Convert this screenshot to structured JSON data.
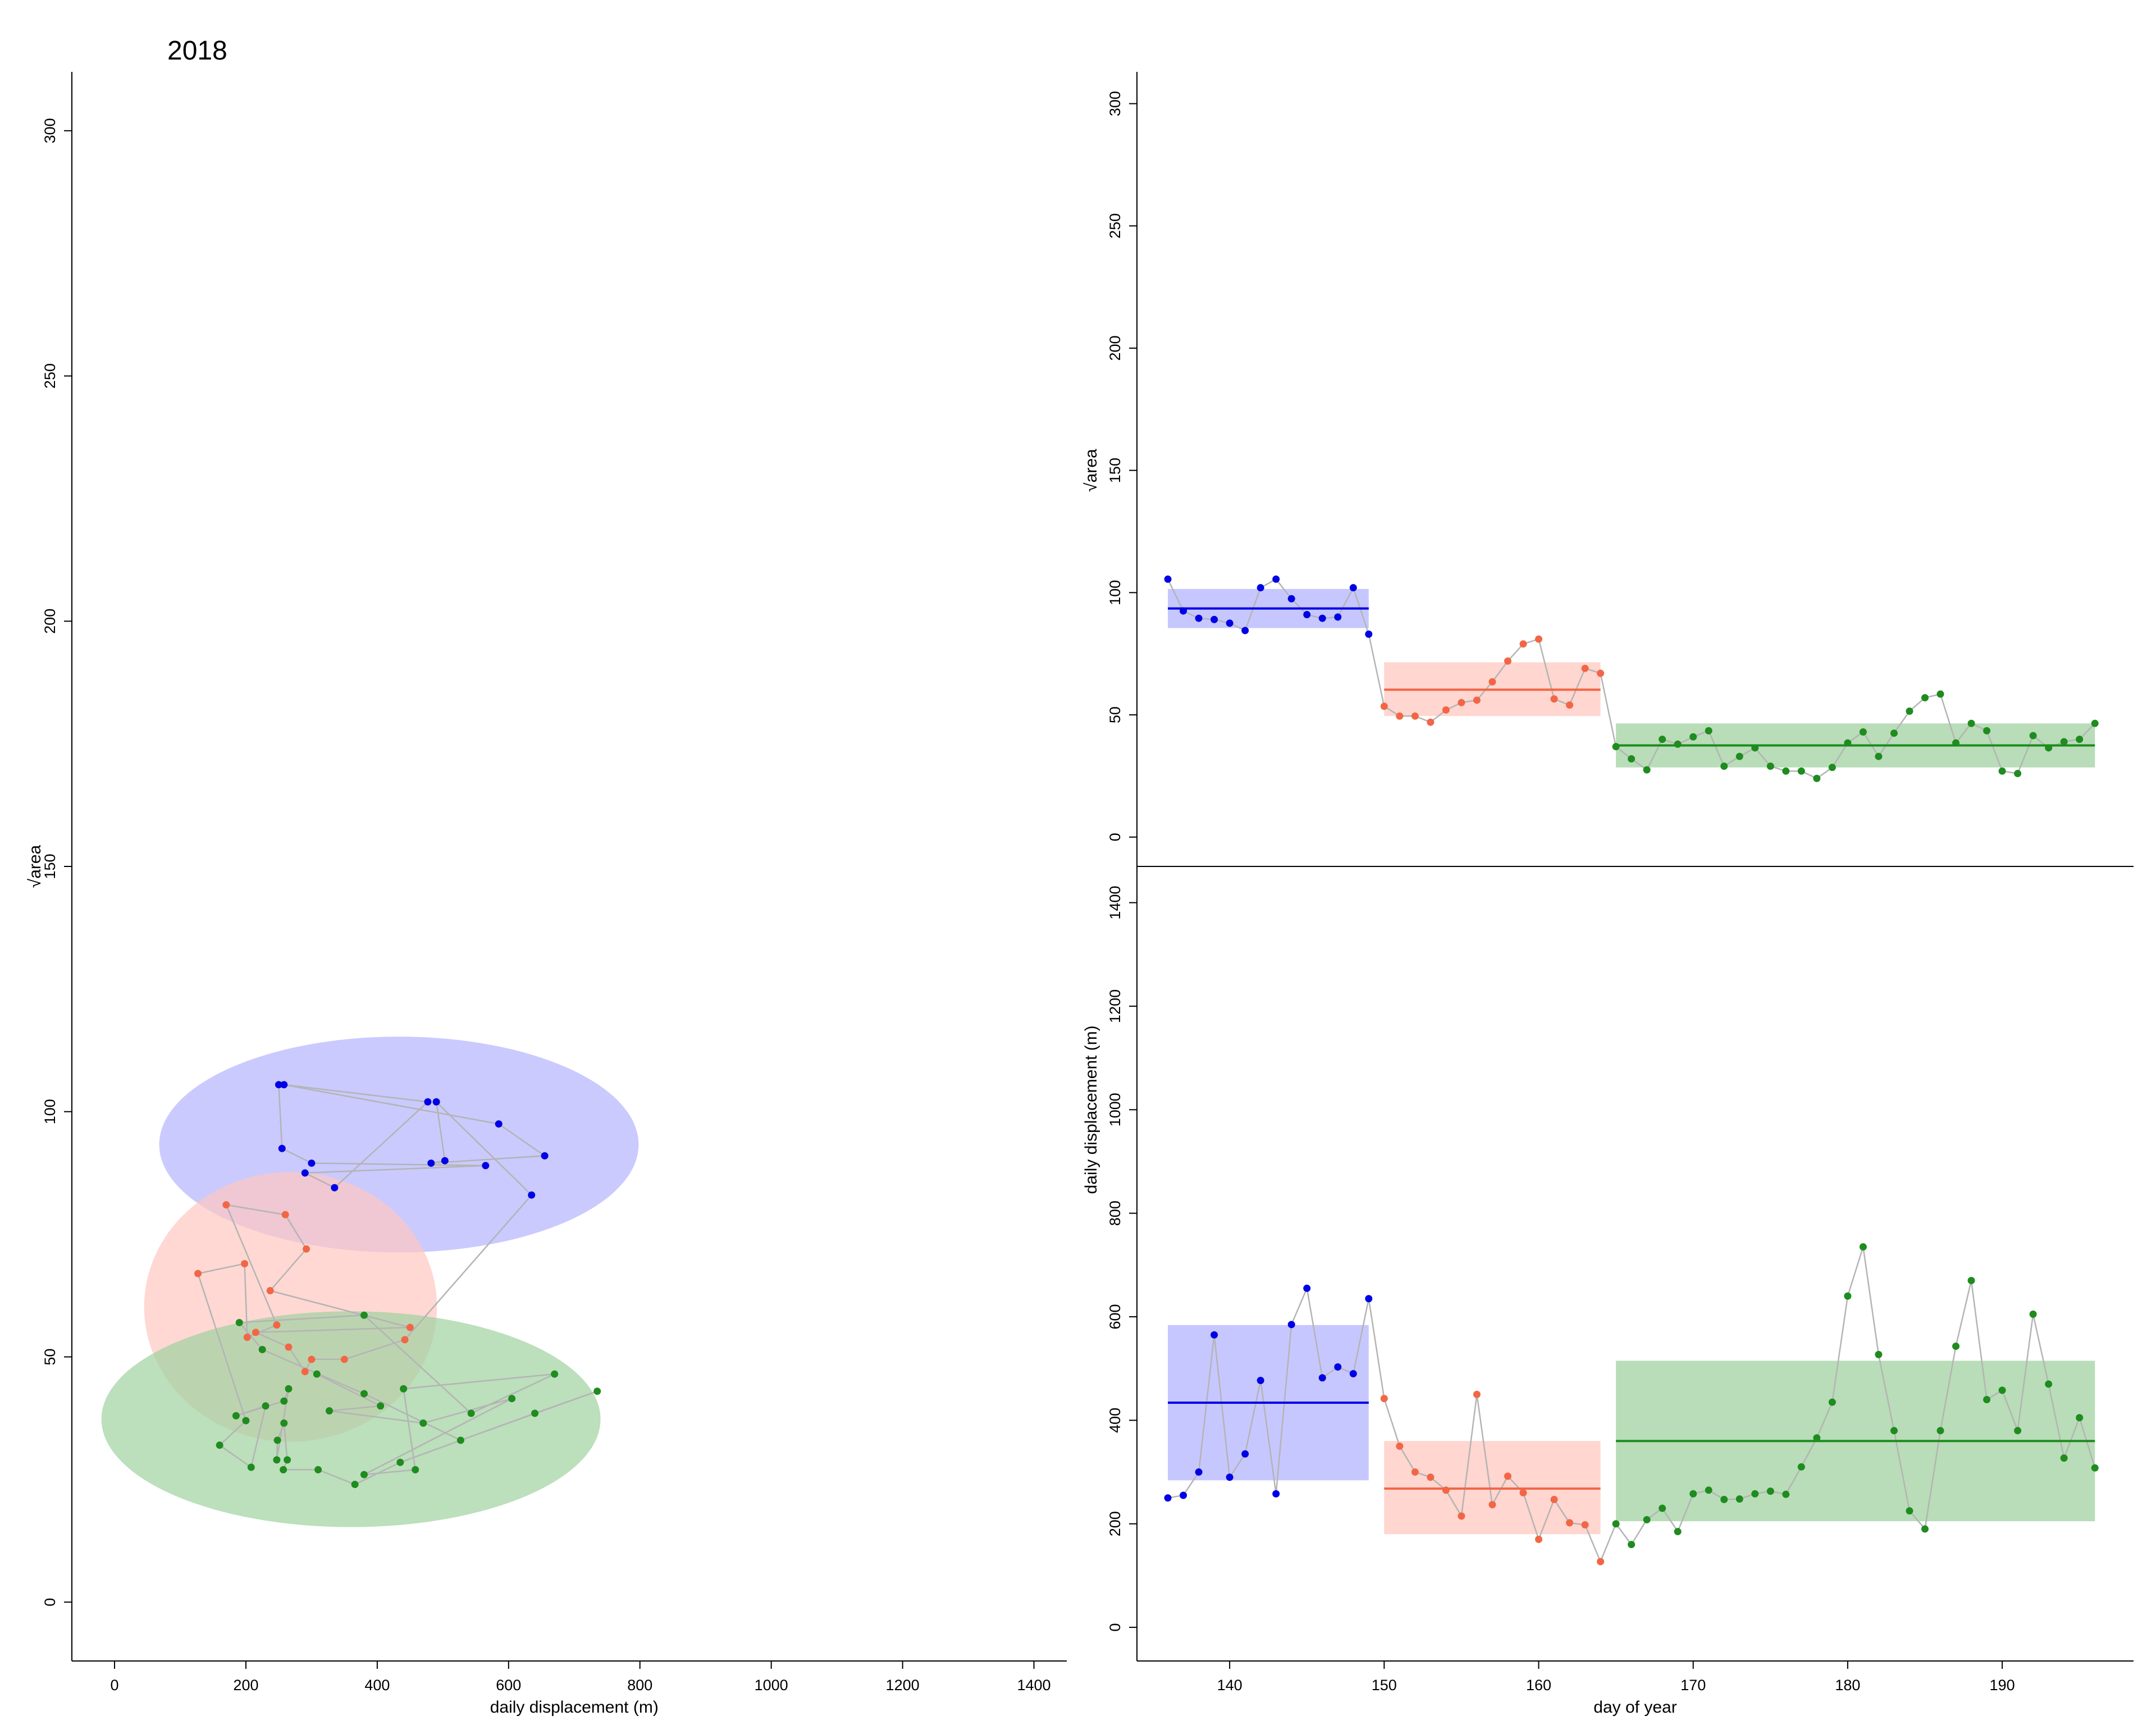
{
  "figure_title": "2018",
  "colors": {
    "blue": "#0000e6",
    "red": "#f26646",
    "green": "#1e8c1e",
    "blue_fill": "#b4b4ff",
    "red_fill": "#ffc8c0",
    "green_fill": "#a0d2a0",
    "connector": "#b4b4b4"
  },
  "chart_data": [
    {
      "id": "scatter",
      "type": "scatter",
      "title": "2018",
      "xlabel": "daily displacement (m)",
      "ylabel": "√area",
      "xlim": [
        -65,
        1450
      ],
      "ylim": [
        -12,
        312
      ],
      "xticks": [
        0,
        200,
        400,
        600,
        800,
        1000,
        1200,
        1400
      ],
      "yticks": [
        0,
        50,
        100,
        150,
        200,
        250,
        300
      ],
      "ellipses": [
        {
          "group": "blue",
          "cx": 433,
          "cy": 93.3,
          "rx": 365,
          "ry": 22
        },
        {
          "group": "red",
          "cx": 268,
          "cy": 60.2,
          "rx": 223,
          "ry": 27.5
        },
        {
          "group": "green",
          "cx": 360,
          "cy": 37.3,
          "rx": 380,
          "ry": 22
        }
      ],
      "path_source": "series of displacement vs √area per day"
    },
    {
      "id": "area_ts",
      "type": "line",
      "xlabel": "",
      "ylabel": "√area",
      "xlim": [
        134,
        198.5
      ],
      "ylim": [
        -12,
        313
      ],
      "yticks": [
        0,
        50,
        100,
        150,
        200,
        250,
        300
      ],
      "segments": [
        {
          "group": "blue",
          "x0": 136,
          "x1": 149,
          "mean": 93.5,
          "low": 85.5,
          "high": 101.5
        },
        {
          "group": "red",
          "x0": 150,
          "x1": 164,
          "mean": 60.3,
          "low": 49.5,
          "high": 71.5
        },
        {
          "group": "green",
          "x0": 165,
          "x1": 196,
          "mean": 37.5,
          "low": 28.5,
          "high": 46.5
        }
      ],
      "series": [
        {
          "group": "blue",
          "x": [
            136,
            137,
            138,
            139,
            140,
            141,
            142,
            143,
            144,
            145,
            146,
            147,
            148,
            149
          ],
          "y": [
            105.5,
            92.5,
            89.5,
            89,
            87.5,
            84.5,
            102,
            105.5,
            97.5,
            91,
            89.5,
            90,
            102,
            83
          ]
        },
        {
          "group": "red",
          "x": [
            150,
            151,
            152,
            153,
            154,
            155,
            156,
            157,
            158,
            159,
            160,
            161,
            162,
            163,
            164
          ],
          "y": [
            53.5,
            49.5,
            49.5,
            47,
            52,
            55,
            56,
            63.5,
            72,
            79,
            81,
            56.5,
            54,
            69,
            67
          ]
        },
        {
          "group": "green",
          "x": [
            165,
            166,
            167,
            168,
            169,
            170,
            171,
            172,
            173,
            174,
            175,
            176,
            177,
            178,
            179,
            180,
            181,
            182,
            183,
            184,
            185,
            186,
            187,
            188,
            189,
            190,
            191,
            192,
            193,
            194,
            195,
            196
          ],
          "y": [
            37,
            32,
            27.5,
            40,
            38,
            41,
            43.5,
            29,
            33,
            36.5,
            29,
            27,
            27,
            24,
            28.5,
            38.5,
            43,
            33,
            42.5,
            51.5,
            57,
            58.5,
            38.5,
            46.5,
            43.5,
            27,
            26,
            41.5,
            36.5,
            39,
            40,
            46.5
          ]
        }
      ]
    },
    {
      "id": "disp_ts",
      "type": "line",
      "xlabel": "day of year",
      "ylabel": "daily displacement (m)",
      "xlim": [
        134,
        198.5
      ],
      "ylim": [
        -65,
        1470
      ],
      "xticks": [
        140,
        150,
        160,
        170,
        180,
        190
      ],
      "yticks": [
        0,
        200,
        400,
        600,
        800,
        1000,
        1200,
        1400
      ],
      "segments": [
        {
          "group": "blue",
          "x0": 136,
          "x1": 149,
          "mean": 434,
          "low": 284,
          "high": 584
        },
        {
          "group": "red",
          "x0": 150,
          "x1": 164,
          "mean": 268,
          "low": 180,
          "high": 360
        },
        {
          "group": "green",
          "x0": 165,
          "x1": 196,
          "mean": 360,
          "low": 205,
          "high": 515
        }
      ],
      "series": [
        {
          "group": "blue",
          "x": [
            136,
            137,
            138,
            139,
            140,
            141,
            142,
            143,
            144,
            145,
            146,
            147,
            148,
            149
          ],
          "y": [
            250,
            255,
            300,
            565,
            290,
            335,
            477,
            258,
            585,
            655,
            482,
            503,
            490,
            635
          ]
        },
        {
          "group": "red",
          "x": [
            150,
            151,
            152,
            153,
            154,
            155,
            156,
            157,
            158,
            159,
            160,
            161,
            162,
            163,
            164
          ],
          "y": [
            442,
            350,
            300,
            290,
            265,
            215,
            450,
            237,
            292,
            260,
            170,
            247,
            202,
            198,
            127
          ]
        },
        {
          "group": "green",
          "x": [
            165,
            166,
            167,
            168,
            169,
            170,
            171,
            172,
            173,
            174,
            175,
            176,
            177,
            178,
            179,
            180,
            181,
            182,
            183,
            184,
            185,
            186,
            187,
            188,
            189,
            190,
            191,
            192,
            193,
            194,
            195,
            196
          ],
          "y": [
            200,
            160,
            208,
            230,
            185,
            258,
            265,
            247,
            248,
            258,
            263,
            257,
            310,
            366,
            435,
            640,
            735,
            527,
            380,
            225,
            190,
            380,
            543,
            670,
            440,
            458,
            380,
            605,
            470,
            327,
            405,
            308
          ]
        }
      ]
    }
  ]
}
